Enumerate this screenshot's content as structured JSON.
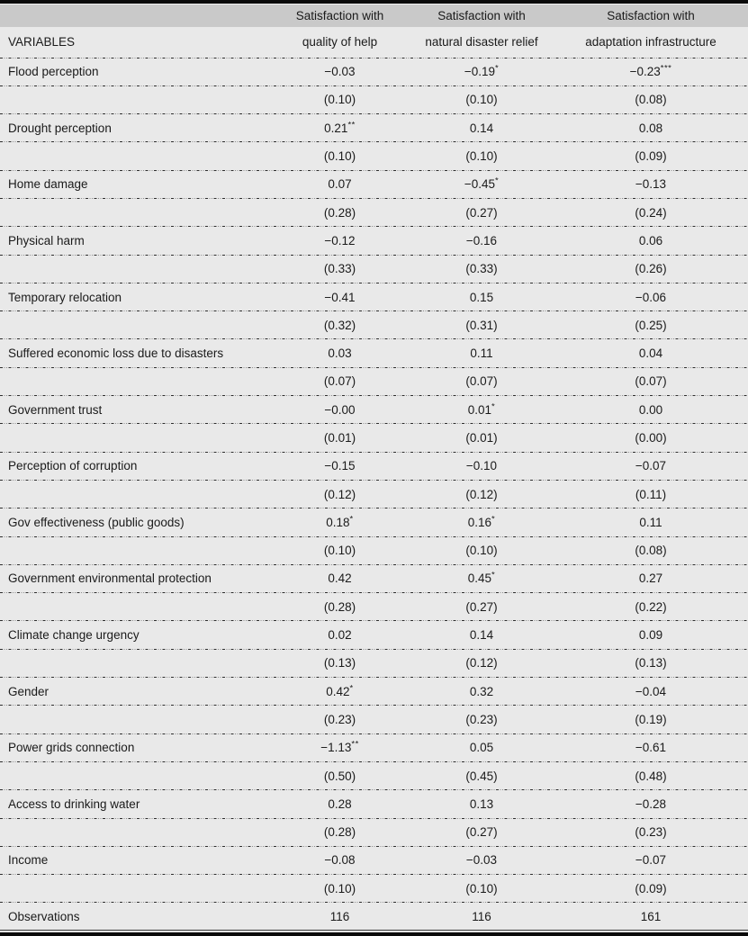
{
  "colors": {
    "page_background": "#e9e9e9",
    "header_band": "#c9c9c9",
    "rule_black": "#0a0a0a",
    "separator_dark": "#2e2e2e",
    "separator_light": "#8c8c8c",
    "text": "#1a1a1a"
  },
  "table": {
    "header": {
      "line1": [
        "Satisfaction with",
        "Satisfaction with",
        "Satisfaction with"
      ],
      "variables_label": "VARIABLES",
      "line2": [
        "quality of help",
        "natural disaster relief",
        "adaptation infrastructure"
      ]
    },
    "rows": [
      {
        "label": "Flood perception",
        "cells": [
          {
            "v": "−0.03",
            "s": ""
          },
          {
            "v": "−0.19",
            "s": "*"
          },
          {
            "v": "−0.23",
            "s": "***"
          }
        ]
      },
      {
        "label": "",
        "cells": [
          {
            "v": "(0.10)",
            "s": ""
          },
          {
            "v": "(0.10)",
            "s": ""
          },
          {
            "v": "(0.08)",
            "s": ""
          }
        ]
      },
      {
        "label": "Drought perception",
        "cells": [
          {
            "v": "0.21",
            "s": "**"
          },
          {
            "v": "0.14",
            "s": ""
          },
          {
            "v": "0.08",
            "s": ""
          }
        ]
      },
      {
        "label": "",
        "cells": [
          {
            "v": "(0.10)",
            "s": ""
          },
          {
            "v": "(0.10)",
            "s": ""
          },
          {
            "v": "(0.09)",
            "s": ""
          }
        ]
      },
      {
        "label": "Home damage",
        "cells": [
          {
            "v": "0.07",
            "s": ""
          },
          {
            "v": "−0.45",
            "s": "*"
          },
          {
            "v": "−0.13",
            "s": ""
          }
        ]
      },
      {
        "label": "",
        "cells": [
          {
            "v": "(0.28)",
            "s": ""
          },
          {
            "v": "(0.27)",
            "s": ""
          },
          {
            "v": "(0.24)",
            "s": ""
          }
        ]
      },
      {
        "label": "Physical harm",
        "cells": [
          {
            "v": "−0.12",
            "s": ""
          },
          {
            "v": "−0.16",
            "s": ""
          },
          {
            "v": "0.06",
            "s": ""
          }
        ]
      },
      {
        "label": "",
        "cells": [
          {
            "v": "(0.33)",
            "s": ""
          },
          {
            "v": "(0.33)",
            "s": ""
          },
          {
            "v": "(0.26)",
            "s": ""
          }
        ]
      },
      {
        "label": "Temporary relocation",
        "cells": [
          {
            "v": "−0.41",
            "s": ""
          },
          {
            "v": "0.15",
            "s": ""
          },
          {
            "v": "−0.06",
            "s": ""
          }
        ]
      },
      {
        "label": "",
        "cells": [
          {
            "v": "(0.32)",
            "s": ""
          },
          {
            "v": "(0.31)",
            "s": ""
          },
          {
            "v": "(0.25)",
            "s": ""
          }
        ]
      },
      {
        "label": "Suffered economic loss due to disasters",
        "cells": [
          {
            "v": "0.03",
            "s": ""
          },
          {
            "v": "0.11",
            "s": ""
          },
          {
            "v": "0.04",
            "s": ""
          }
        ]
      },
      {
        "label": "",
        "cells": [
          {
            "v": "(0.07)",
            "s": ""
          },
          {
            "v": "(0.07)",
            "s": ""
          },
          {
            "v": "(0.07)",
            "s": ""
          }
        ]
      },
      {
        "label": "Government trust",
        "cells": [
          {
            "v": "−0.00",
            "s": ""
          },
          {
            "v": "0.01",
            "s": "*"
          },
          {
            "v": "0.00",
            "s": ""
          }
        ]
      },
      {
        "label": "",
        "cells": [
          {
            "v": "(0.01)",
            "s": ""
          },
          {
            "v": "(0.01)",
            "s": ""
          },
          {
            "v": "(0.00)",
            "s": ""
          }
        ]
      },
      {
        "label": "Perception of corruption",
        "cells": [
          {
            "v": "−0.15",
            "s": ""
          },
          {
            "v": "−0.10",
            "s": ""
          },
          {
            "v": "−0.07",
            "s": ""
          }
        ]
      },
      {
        "label": "",
        "cells": [
          {
            "v": "(0.12)",
            "s": ""
          },
          {
            "v": "(0.12)",
            "s": ""
          },
          {
            "v": "(0.11)",
            "s": ""
          }
        ]
      },
      {
        "label": "Gov effectiveness (public goods)",
        "cells": [
          {
            "v": "0.18",
            "s": "*"
          },
          {
            "v": "0.16",
            "s": "*"
          },
          {
            "v": "0.11",
            "s": ""
          }
        ]
      },
      {
        "label": "",
        "cells": [
          {
            "v": "(0.10)",
            "s": ""
          },
          {
            "v": "(0.10)",
            "s": ""
          },
          {
            "v": "(0.08)",
            "s": ""
          }
        ]
      },
      {
        "label": "Government environmental protection",
        "cells": [
          {
            "v": "0.42",
            "s": ""
          },
          {
            "v": "0.45",
            "s": "*"
          },
          {
            "v": "0.27",
            "s": ""
          }
        ]
      },
      {
        "label": "",
        "cells": [
          {
            "v": "(0.28)",
            "s": ""
          },
          {
            "v": "(0.27)",
            "s": ""
          },
          {
            "v": "(0.22)",
            "s": ""
          }
        ]
      },
      {
        "label": "Climate change urgency",
        "cells": [
          {
            "v": "0.02",
            "s": ""
          },
          {
            "v": "0.14",
            "s": ""
          },
          {
            "v": "0.09",
            "s": ""
          }
        ]
      },
      {
        "label": "",
        "cells": [
          {
            "v": "(0.13)",
            "s": ""
          },
          {
            "v": "(0.12)",
            "s": ""
          },
          {
            "v": "(0.13)",
            "s": ""
          }
        ]
      },
      {
        "label": "Gender",
        "cells": [
          {
            "v": "0.42",
            "s": "*"
          },
          {
            "v": "0.32",
            "s": ""
          },
          {
            "v": "−0.04",
            "s": ""
          }
        ]
      },
      {
        "label": "",
        "cells": [
          {
            "v": "(0.23)",
            "s": ""
          },
          {
            "v": "(0.23)",
            "s": ""
          },
          {
            "v": "(0.19)",
            "s": ""
          }
        ]
      },
      {
        "label": "Power grids connection",
        "cells": [
          {
            "v": "−1.13",
            "s": "**"
          },
          {
            "v": "0.05",
            "s": ""
          },
          {
            "v": "−0.61",
            "s": ""
          }
        ]
      },
      {
        "label": "",
        "cells": [
          {
            "v": "(0.50)",
            "s": ""
          },
          {
            "v": "(0.45)",
            "s": ""
          },
          {
            "v": "(0.48)",
            "s": ""
          }
        ]
      },
      {
        "label": "Access to drinking water",
        "cells": [
          {
            "v": "0.28",
            "s": ""
          },
          {
            "v": "0.13",
            "s": ""
          },
          {
            "v": "−0.28",
            "s": ""
          }
        ]
      },
      {
        "label": "",
        "cells": [
          {
            "v": "(0.28)",
            "s": ""
          },
          {
            "v": "(0.27)",
            "s": ""
          },
          {
            "v": "(0.23)",
            "s": ""
          }
        ]
      },
      {
        "label": "Income",
        "cells": [
          {
            "v": "−0.08",
            "s": ""
          },
          {
            "v": "−0.03",
            "s": ""
          },
          {
            "v": "−0.07",
            "s": ""
          }
        ]
      },
      {
        "label": "",
        "cells": [
          {
            "v": "(0.10)",
            "s": ""
          },
          {
            "v": "(0.10)",
            "s": ""
          },
          {
            "v": "(0.09)",
            "s": ""
          }
        ]
      },
      {
        "label": "Observations",
        "cells": [
          {
            "v": "116",
            "s": ""
          },
          {
            "v": "116",
            "s": ""
          },
          {
            "v": "161",
            "s": ""
          }
        ]
      }
    ]
  }
}
